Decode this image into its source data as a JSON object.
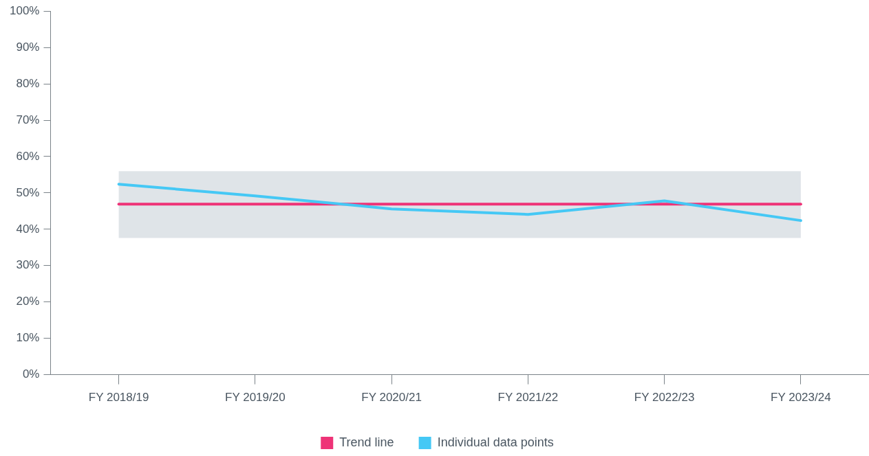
{
  "chart_data": {
    "type": "line",
    "categories": [
      "FY 2018/19",
      "FY 2019/20",
      "FY 2020/21",
      "FY 2021/22",
      "FY 2022/23",
      "FY 2023/24"
    ],
    "series": [
      {
        "name": "Trend line",
        "color": "#ee3377",
        "values": [
          46.9,
          46.9,
          46.9,
          46.9,
          46.9,
          46.9
        ]
      },
      {
        "name": "Individual data points",
        "color": "#45c8f5",
        "values": [
          52.4,
          49.2,
          45.6,
          44.1,
          47.8,
          42.4
        ]
      }
    ],
    "ylim": [
      0,
      100
    ],
    "yticks": [
      {
        "value": 0,
        "label": "0%"
      },
      {
        "value": 10,
        "label": "10%"
      },
      {
        "value": 20,
        "label": "20%"
      },
      {
        "value": 30,
        "label": "30%"
      },
      {
        "value": 40,
        "label": "40%"
      },
      {
        "value": 50,
        "label": "50%"
      },
      {
        "value": 60,
        "label": "60%"
      },
      {
        "value": 70,
        "label": "70%"
      },
      {
        "value": 80,
        "label": "80%"
      },
      {
        "value": 90,
        "label": "90%"
      },
      {
        "value": 100,
        "label": "100%"
      }
    ],
    "bands": [
      {
        "axis": "y",
        "from": 37.6,
        "to": 56,
        "color": "#dfe4e8"
      }
    ],
    "grid": false,
    "legend": "bottom",
    "marker": "none",
    "line_style": "solid"
  }
}
